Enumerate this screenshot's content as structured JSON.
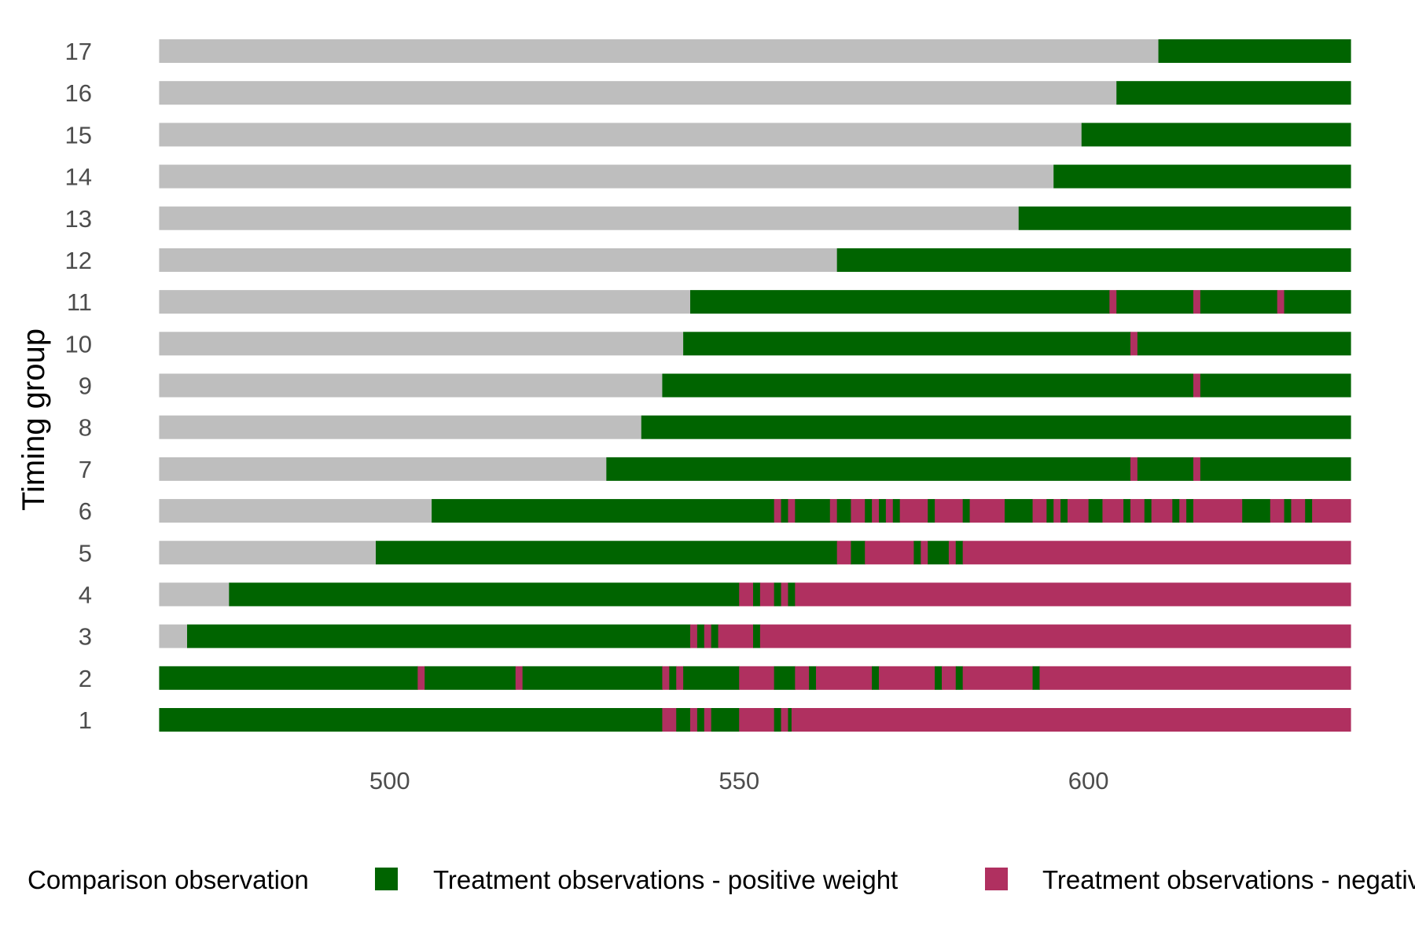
{
  "chart_data": {
    "type": "bar",
    "orientation": "horizontal-timeline",
    "ylabel": "Timing group",
    "xlabel": "",
    "xlim": [
      466.5,
      637.5
    ],
    "x_ticks": [
      500,
      550,
      600
    ],
    "groups": [
      {
        "label": "1",
        "segments": [
          {
            "x0": 467,
            "x1": 539,
            "cat": "pos"
          },
          {
            "x0": 539,
            "x1": 541,
            "cat": "neg"
          },
          {
            "x0": 541,
            "x1": 543,
            "cat": "pos"
          },
          {
            "x0": 543,
            "x1": 544,
            "cat": "neg"
          },
          {
            "x0": 544,
            "x1": 545,
            "cat": "pos"
          },
          {
            "x0": 545,
            "x1": 546,
            "cat": "neg"
          },
          {
            "x0": 546,
            "x1": 550,
            "cat": "pos"
          },
          {
            "x0": 550,
            "x1": 555,
            "cat": "neg"
          },
          {
            "x0": 555,
            "x1": 556,
            "cat": "pos"
          },
          {
            "x0": 556,
            "x1": 557,
            "cat": "neg"
          },
          {
            "x0": 557,
            "x1": 557.5,
            "cat": "pos"
          },
          {
            "x0": 557.5,
            "x1": 638,
            "cat": "neg"
          }
        ]
      },
      {
        "label": "2",
        "segments": [
          {
            "x0": 467,
            "x1": 504,
            "cat": "pos"
          },
          {
            "x0": 504,
            "x1": 505,
            "cat": "neg"
          },
          {
            "x0": 505,
            "x1": 518,
            "cat": "pos"
          },
          {
            "x0": 518,
            "x1": 519,
            "cat": "neg"
          },
          {
            "x0": 519,
            "x1": 539,
            "cat": "pos"
          },
          {
            "x0": 539,
            "x1": 540,
            "cat": "neg"
          },
          {
            "x0": 540,
            "x1": 541,
            "cat": "pos"
          },
          {
            "x0": 541,
            "x1": 542,
            "cat": "neg"
          },
          {
            "x0": 542,
            "x1": 550,
            "cat": "pos"
          },
          {
            "x0": 550,
            "x1": 555,
            "cat": "neg"
          },
          {
            "x0": 555,
            "x1": 558,
            "cat": "pos"
          },
          {
            "x0": 558,
            "x1": 560,
            "cat": "neg"
          },
          {
            "x0": 560,
            "x1": 561,
            "cat": "pos"
          },
          {
            "x0": 561,
            "x1": 569,
            "cat": "neg"
          },
          {
            "x0": 569,
            "x1": 570,
            "cat": "pos"
          },
          {
            "x0": 570,
            "x1": 578,
            "cat": "neg"
          },
          {
            "x0": 578,
            "x1": 579,
            "cat": "pos"
          },
          {
            "x0": 579,
            "x1": 581,
            "cat": "neg"
          },
          {
            "x0": 581,
            "x1": 582,
            "cat": "pos"
          },
          {
            "x0": 582,
            "x1": 592,
            "cat": "neg"
          },
          {
            "x0": 592,
            "x1": 593,
            "cat": "pos"
          },
          {
            "x0": 593,
            "x1": 638,
            "cat": "neg"
          }
        ]
      },
      {
        "label": "3",
        "segments": [
          {
            "x0": 467,
            "x1": 471,
            "cat": "comp"
          },
          {
            "x0": 471,
            "x1": 543,
            "cat": "pos"
          },
          {
            "x0": 543,
            "x1": 544,
            "cat": "neg"
          },
          {
            "x0": 544,
            "x1": 545,
            "cat": "pos"
          },
          {
            "x0": 545,
            "x1": 546,
            "cat": "neg"
          },
          {
            "x0": 546,
            "x1": 547,
            "cat": "pos"
          },
          {
            "x0": 547,
            "x1": 552,
            "cat": "neg"
          },
          {
            "x0": 552,
            "x1": 553,
            "cat": "pos"
          },
          {
            "x0": 553,
            "x1": 638,
            "cat": "neg"
          }
        ]
      },
      {
        "label": "4",
        "segments": [
          {
            "x0": 467,
            "x1": 477,
            "cat": "comp"
          },
          {
            "x0": 477,
            "x1": 550,
            "cat": "pos"
          },
          {
            "x0": 550,
            "x1": 552,
            "cat": "neg"
          },
          {
            "x0": 552,
            "x1": 553,
            "cat": "pos"
          },
          {
            "x0": 553,
            "x1": 555,
            "cat": "neg"
          },
          {
            "x0": 555,
            "x1": 556,
            "cat": "pos"
          },
          {
            "x0": 556,
            "x1": 557,
            "cat": "neg"
          },
          {
            "x0": 557,
            "x1": 558,
            "cat": "pos"
          },
          {
            "x0": 558,
            "x1": 638,
            "cat": "neg"
          }
        ]
      },
      {
        "label": "5",
        "segments": [
          {
            "x0": 467,
            "x1": 498,
            "cat": "comp"
          },
          {
            "x0": 498,
            "x1": 564,
            "cat": "pos"
          },
          {
            "x0": 564,
            "x1": 566,
            "cat": "neg"
          },
          {
            "x0": 566,
            "x1": 568,
            "cat": "pos"
          },
          {
            "x0": 568,
            "x1": 575,
            "cat": "neg"
          },
          {
            "x0": 575,
            "x1": 576,
            "cat": "pos"
          },
          {
            "x0": 576,
            "x1": 577,
            "cat": "neg"
          },
          {
            "x0": 577,
            "x1": 580,
            "cat": "pos"
          },
          {
            "x0": 580,
            "x1": 581,
            "cat": "neg"
          },
          {
            "x0": 581,
            "x1": 582,
            "cat": "pos"
          },
          {
            "x0": 582,
            "x1": 638,
            "cat": "neg"
          }
        ]
      },
      {
        "label": "6",
        "segments": [
          {
            "x0": 467,
            "x1": 506,
            "cat": "comp"
          },
          {
            "x0": 506,
            "x1": 555,
            "cat": "pos"
          },
          {
            "x0": 555,
            "x1": 556,
            "cat": "neg"
          },
          {
            "x0": 556,
            "x1": 557,
            "cat": "pos"
          },
          {
            "x0": 557,
            "x1": 558,
            "cat": "neg"
          },
          {
            "x0": 558,
            "x1": 563,
            "cat": "pos"
          },
          {
            "x0": 563,
            "x1": 564,
            "cat": "neg"
          },
          {
            "x0": 564,
            "x1": 566,
            "cat": "pos"
          },
          {
            "x0": 566,
            "x1": 568,
            "cat": "neg"
          },
          {
            "x0": 568,
            "x1": 569,
            "cat": "pos"
          },
          {
            "x0": 569,
            "x1": 570,
            "cat": "neg"
          },
          {
            "x0": 570,
            "x1": 571,
            "cat": "pos"
          },
          {
            "x0": 571,
            "x1": 572,
            "cat": "neg"
          },
          {
            "x0": 572,
            "x1": 573,
            "cat": "pos"
          },
          {
            "x0": 573,
            "x1": 577,
            "cat": "neg"
          },
          {
            "x0": 577,
            "x1": 578,
            "cat": "pos"
          },
          {
            "x0": 578,
            "x1": 582,
            "cat": "neg"
          },
          {
            "x0": 582,
            "x1": 583,
            "cat": "pos"
          },
          {
            "x0": 583,
            "x1": 588,
            "cat": "neg"
          },
          {
            "x0": 588,
            "x1": 592,
            "cat": "pos"
          },
          {
            "x0": 592,
            "x1": 594,
            "cat": "neg"
          },
          {
            "x0": 594,
            "x1": 595,
            "cat": "pos"
          },
          {
            "x0": 595,
            "x1": 596,
            "cat": "neg"
          },
          {
            "x0": 596,
            "x1": 597,
            "cat": "pos"
          },
          {
            "x0": 597,
            "x1": 600,
            "cat": "neg"
          },
          {
            "x0": 600,
            "x1": 602,
            "cat": "pos"
          },
          {
            "x0": 602,
            "x1": 605,
            "cat": "neg"
          },
          {
            "x0": 605,
            "x1": 606,
            "cat": "pos"
          },
          {
            "x0": 606,
            "x1": 608,
            "cat": "neg"
          },
          {
            "x0": 608,
            "x1": 609,
            "cat": "pos"
          },
          {
            "x0": 609,
            "x1": 612,
            "cat": "neg"
          },
          {
            "x0": 612,
            "x1": 613,
            "cat": "pos"
          },
          {
            "x0": 613,
            "x1": 614,
            "cat": "neg"
          },
          {
            "x0": 614,
            "x1": 615,
            "cat": "pos"
          },
          {
            "x0": 615,
            "x1": 622,
            "cat": "neg"
          },
          {
            "x0": 622,
            "x1": 626,
            "cat": "pos"
          },
          {
            "x0": 626,
            "x1": 628,
            "cat": "neg"
          },
          {
            "x0": 628,
            "x1": 629,
            "cat": "pos"
          },
          {
            "x0": 629,
            "x1": 631,
            "cat": "neg"
          },
          {
            "x0": 631,
            "x1": 632,
            "cat": "pos"
          },
          {
            "x0": 632,
            "x1": 638,
            "cat": "neg"
          }
        ]
      },
      {
        "label": "7",
        "segments": [
          {
            "x0": 467,
            "x1": 531,
            "cat": "comp"
          },
          {
            "x0": 531,
            "x1": 606,
            "cat": "pos"
          },
          {
            "x0": 606,
            "x1": 607,
            "cat": "neg"
          },
          {
            "x0": 607,
            "x1": 615,
            "cat": "pos"
          },
          {
            "x0": 615,
            "x1": 616,
            "cat": "neg"
          },
          {
            "x0": 616,
            "x1": 638,
            "cat": "pos"
          }
        ]
      },
      {
        "label": "8",
        "segments": [
          {
            "x0": 467,
            "x1": 536,
            "cat": "comp"
          },
          {
            "x0": 536,
            "x1": 638,
            "cat": "pos"
          }
        ]
      },
      {
        "label": "9",
        "segments": [
          {
            "x0": 467,
            "x1": 539,
            "cat": "comp"
          },
          {
            "x0": 539,
            "x1": 615,
            "cat": "pos"
          },
          {
            "x0": 615,
            "x1": 616,
            "cat": "neg"
          },
          {
            "x0": 616,
            "x1": 638,
            "cat": "pos"
          }
        ]
      },
      {
        "label": "10",
        "segments": [
          {
            "x0": 467,
            "x1": 542,
            "cat": "comp"
          },
          {
            "x0": 542,
            "x1": 606,
            "cat": "pos"
          },
          {
            "x0": 606,
            "x1": 607,
            "cat": "neg"
          },
          {
            "x0": 607,
            "x1": 638,
            "cat": "pos"
          }
        ]
      },
      {
        "label": "11",
        "segments": [
          {
            "x0": 467,
            "x1": 543,
            "cat": "comp"
          },
          {
            "x0": 543,
            "x1": 603,
            "cat": "pos"
          },
          {
            "x0": 603,
            "x1": 604,
            "cat": "neg"
          },
          {
            "x0": 604,
            "x1": 615,
            "cat": "pos"
          },
          {
            "x0": 615,
            "x1": 616,
            "cat": "neg"
          },
          {
            "x0": 616,
            "x1": 627,
            "cat": "pos"
          },
          {
            "x0": 627,
            "x1": 628,
            "cat": "neg"
          },
          {
            "x0": 628,
            "x1": 638,
            "cat": "pos"
          }
        ]
      },
      {
        "label": "12",
        "segments": [
          {
            "x0": 467,
            "x1": 564,
            "cat": "comp"
          },
          {
            "x0": 564,
            "x1": 638,
            "cat": "pos"
          }
        ]
      },
      {
        "label": "13",
        "segments": [
          {
            "x0": 467,
            "x1": 590,
            "cat": "comp"
          },
          {
            "x0": 590,
            "x1": 638,
            "cat": "pos"
          }
        ]
      },
      {
        "label": "14",
        "segments": [
          {
            "x0": 467,
            "x1": 595,
            "cat": "comp"
          },
          {
            "x0": 595,
            "x1": 638,
            "cat": "pos"
          }
        ]
      },
      {
        "label": "15",
        "segments": [
          {
            "x0": 467,
            "x1": 599,
            "cat": "comp"
          },
          {
            "x0": 599,
            "x1": 638,
            "cat": "pos"
          }
        ]
      },
      {
        "label": "16",
        "segments": [
          {
            "x0": 467,
            "x1": 604,
            "cat": "comp"
          },
          {
            "x0": 604,
            "x1": 638,
            "cat": "pos"
          }
        ]
      },
      {
        "label": "17",
        "segments": [
          {
            "x0": 467,
            "x1": 610,
            "cat": "comp"
          },
          {
            "x0": 610,
            "x1": 638,
            "cat": "pos"
          }
        ]
      }
    ],
    "legend": {
      "placement": "bottom",
      "entries": [
        {
          "key": "comp",
          "label": "Comparison observation",
          "color": "#bebebe"
        },
        {
          "key": "pos",
          "label": "Treatment observations - positive weight",
          "color": "#006400"
        },
        {
          "key": "neg",
          "label": "Treatment observations - negative weight",
          "color": "#b03060"
        }
      ]
    },
    "grid": false
  }
}
